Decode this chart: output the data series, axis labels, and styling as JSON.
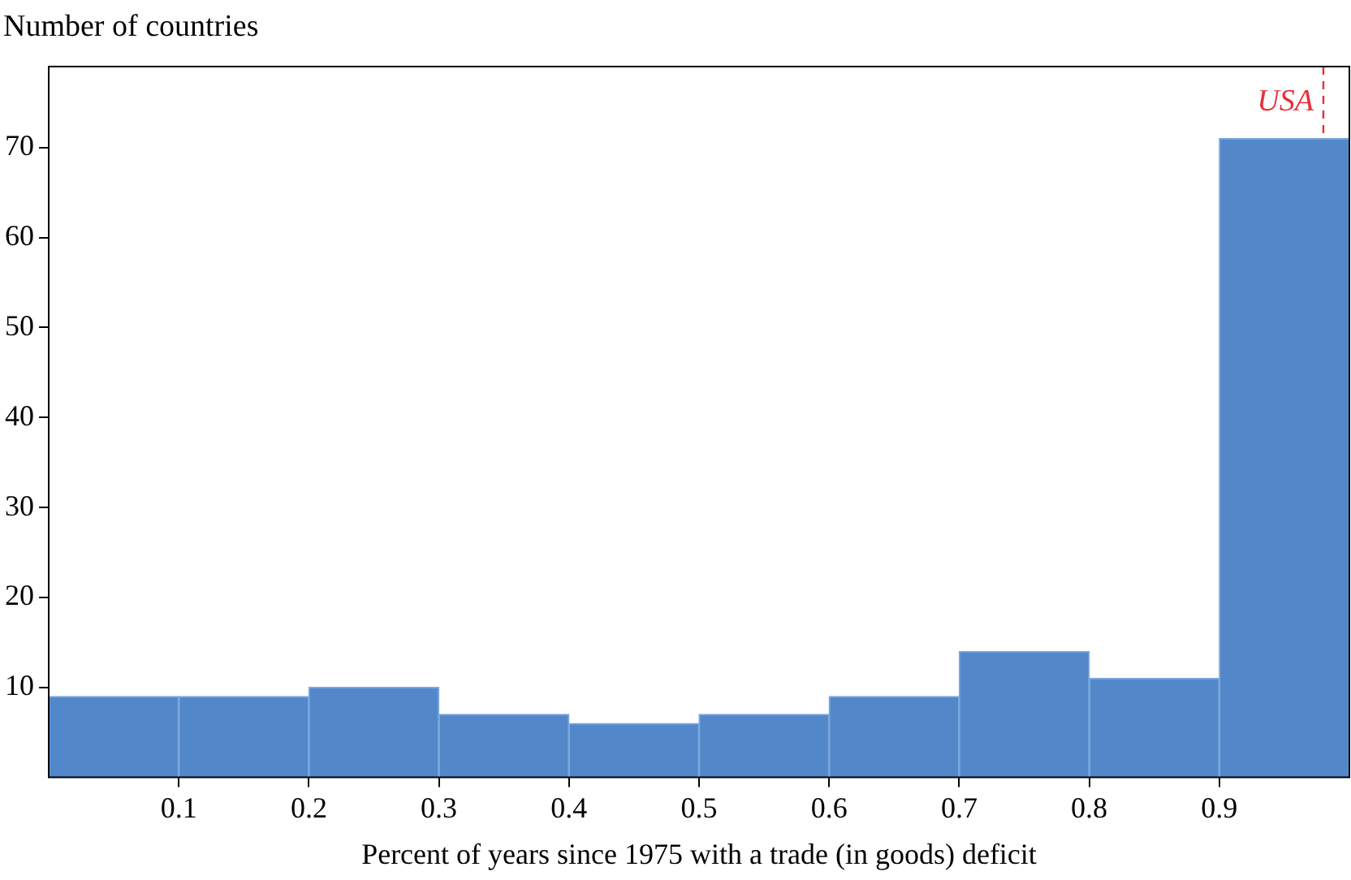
{
  "chart_data": {
    "type": "histogram",
    "xlabel": "Percent of years since 1975 with a trade (in goods) deficit",
    "ylabel": "Number of countries",
    "bins": [
      0,
      0.1,
      0.2,
      0.3,
      0.4,
      0.5,
      0.6,
      0.7,
      0.8,
      0.9,
      1.0
    ],
    "values": [
      9,
      9,
      10,
      7,
      6,
      7,
      9,
      14,
      11,
      71
    ],
    "color": "#5288c9",
    "xlim": [
      0,
      1
    ],
    "xticks": [
      0.1,
      0.2,
      0.3,
      0.4,
      0.5,
      0.6,
      0.7,
      0.8,
      0.9
    ],
    "ylim": [
      0,
      79
    ],
    "yticks": [
      10,
      20,
      30,
      40,
      50,
      60,
      70
    ],
    "grid": false,
    "legend": false,
    "ref_lines": [
      {
        "axis": "x",
        "value": 0.98,
        "label": "USA",
        "color": "#e8303a",
        "line_style": "dashed"
      }
    ]
  }
}
